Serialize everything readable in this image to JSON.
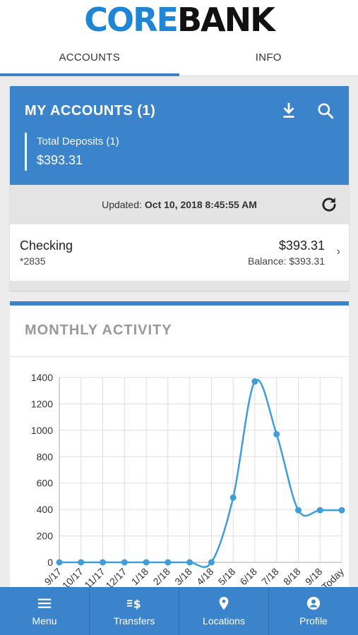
{
  "logo": {
    "part1": "CORE",
    "part2": "BANK"
  },
  "tabs": [
    {
      "label": "ACCOUNTS",
      "active": true
    },
    {
      "label": "INFO",
      "active": false
    }
  ],
  "accounts": {
    "title": "MY ACCOUNTS (1)",
    "icons": [
      "download-icon",
      "search-icon"
    ],
    "total_label": "Total Deposits (1)",
    "total_amount": "$393.31",
    "updated_label": "Updated:",
    "updated_value": "Oct 10, 2018 8:45:55 AM",
    "items": [
      {
        "name": "Checking",
        "number": "*2835",
        "amount": "$393.31",
        "balance": "Balance: $393.31"
      }
    ]
  },
  "activity": {
    "title": "MONTHLY ACTIVITY"
  },
  "chart_data": {
    "type": "line",
    "categories": [
      "9/17",
      "10/17",
      "11/17",
      "12/17",
      "1/18",
      "2/18",
      "3/18",
      "4/18",
      "5/18",
      "6/18",
      "7/18",
      "8/18",
      "9/18",
      "Today"
    ],
    "values": [
      0,
      0,
      0,
      0,
      0,
      0,
      0,
      0,
      490,
      1370,
      970,
      395,
      395,
      395
    ],
    "yticks": [
      "0",
      "200",
      "400",
      "600",
      "800",
      "1000",
      "1200",
      "1400"
    ],
    "ylim": [
      0,
      1400
    ],
    "grid": true,
    "color": "#3f9ed8"
  },
  "nav": [
    {
      "label": "Menu",
      "icon": "menu-icon"
    },
    {
      "label": "Transfers",
      "icon": "transfers-icon"
    },
    {
      "label": "Locations",
      "icon": "location-pin-icon"
    },
    {
      "label": "Profile",
      "icon": "profile-icon"
    }
  ]
}
